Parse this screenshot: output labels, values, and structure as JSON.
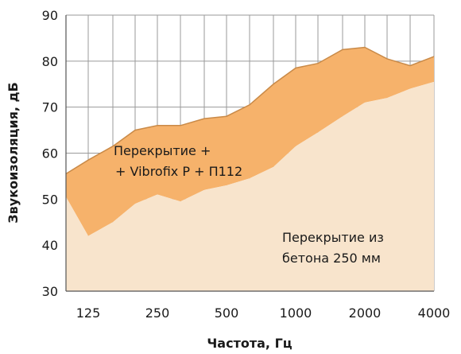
{
  "chart_data": {
    "type": "area",
    "title": "",
    "xlabel": "Частота, Гц",
    "ylabel": "Звукоизоляция, дБ",
    "xscale": "log",
    "xlim": [
      100,
      4000
    ],
    "ylim": [
      30,
      90
    ],
    "y_ticks": [
      30,
      40,
      50,
      60,
      70,
      80,
      90
    ],
    "x_ticks": [
      {
        "value": 125,
        "label": "125"
      },
      {
        "value": 250,
        "label": "250"
      },
      {
        "value": 500,
        "label": "500"
      },
      {
        "value": 1000,
        "label": "1000"
      },
      {
        "value": 2000,
        "label": "2000"
      },
      {
        "value": 4000,
        "label": "4000"
      }
    ],
    "grid": true,
    "series": [
      {
        "name": "Перекрытие из бетона 250 мм",
        "label_lines": [
          "Перекрытие из",
          "бетона 250 мм"
        ],
        "color": "#f8e4cc",
        "x": [
          100,
          125,
          160,
          200,
          250,
          315,
          400,
          500,
          630,
          800,
          1000,
          1250,
          1600,
          2000,
          2500,
          3150,
          4000
        ],
        "values": [
          50.5,
          42,
          45,
          49,
          51,
          49.5,
          52,
          53,
          54.5,
          57,
          61.5,
          64.5,
          68,
          71,
          72,
          74,
          75.5
        ]
      },
      {
        "name": "Перекрытие + + Vibrofix P + П112",
        "label_lines": [
          "Перекрытие +",
          "+ Vibrofix P + П112"
        ],
        "color": "#f6b26b",
        "x": [
          100,
          125,
          160,
          200,
          250,
          315,
          400,
          500,
          630,
          800,
          1000,
          1250,
          1600,
          2000,
          2500,
          3150,
          4000
        ],
        "values": [
          55.5,
          58.5,
          61.5,
          65,
          66,
          66,
          67.5,
          68,
          70.5,
          75,
          78.5,
          79.5,
          82.5,
          83,
          80.5,
          79,
          81
        ]
      }
    ]
  }
}
